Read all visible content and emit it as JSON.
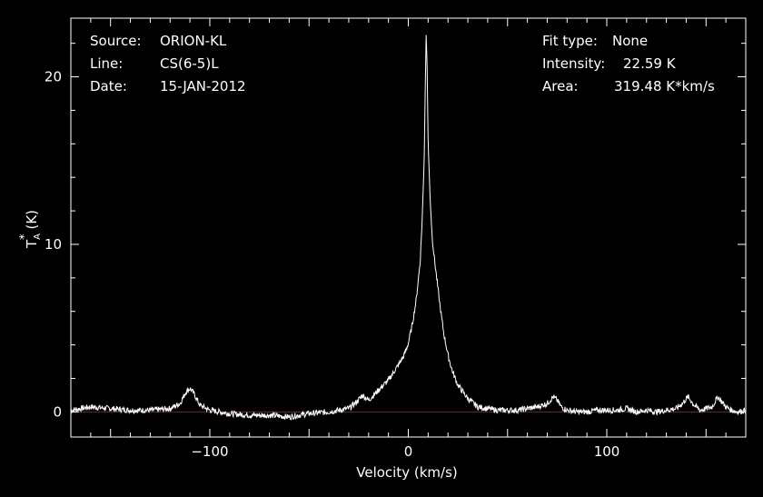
{
  "info_left": [
    {
      "label": "Source:",
      "value": "ORION-KL"
    },
    {
      "label": "Line:",
      "value": "CS(6-5)L"
    },
    {
      "label": "Date:",
      "value": "15-JAN-2012"
    }
  ],
  "info_right": [
    {
      "label": "Fit type:",
      "value": "None"
    },
    {
      "label": "Intensity:",
      "value": "22.59 K"
    },
    {
      "label": "Area:",
      "value": "319.48 K*km/s"
    }
  ],
  "colors": {
    "background": "#000000",
    "axes": "#ffffff",
    "spectrum": "#ffffff",
    "baseline": "#cc0000"
  },
  "chart_data": {
    "type": "line",
    "xlabel": "Velocity (km/s)",
    "ylabel": {
      "main": "T",
      "superscript": "*",
      "subscript": "A",
      "unit": "(K)"
    },
    "xlim": [
      -170,
      170
    ],
    "ylim": [
      -1.5,
      23.5
    ],
    "x_ticks": [
      -100,
      0,
      100
    ],
    "y_ticks": [
      0,
      10,
      20
    ],
    "baseline_y": 0,
    "grid": false,
    "series": [
      {
        "x": [
          -170,
          -165,
          -160,
          -150,
          -140,
          -130,
          -120,
          -115,
          -112,
          -110,
          -108,
          -105,
          -100,
          -90,
          -80,
          -70,
          -60,
          -50,
          -40,
          -30,
          -26,
          -23,
          -20,
          -15,
          -10,
          -5,
          -2,
          0,
          2,
          4,
          6,
          7,
          8,
          8.5,
          9,
          9.5,
          10,
          11,
          12,
          13,
          14,
          16,
          18,
          20,
          22,
          25,
          30,
          35,
          40,
          45,
          50,
          55,
          60,
          65,
          70,
          73,
          75,
          77,
          80,
          85,
          90,
          95,
          100,
          105,
          110,
          115,
          120,
          125,
          130,
          135,
          138,
          141,
          144,
          147,
          150,
          153,
          156,
          158,
          160,
          163,
          166,
          170
        ],
        "y": [
          0.1,
          0.2,
          0.3,
          0.2,
          0.1,
          0.1,
          0.2,
          0.5,
          1.2,
          1.4,
          1.1,
          0.4,
          0.1,
          -0.1,
          -0.2,
          -0.2,
          -0.3,
          -0.1,
          0.0,
          0.2,
          0.6,
          1.0,
          0.7,
          1.3,
          1.9,
          2.8,
          3.4,
          4.1,
          5.2,
          6.7,
          9.0,
          11.5,
          15.0,
          19.0,
          22.59,
          20.5,
          16.0,
          12.8,
          10.5,
          9.3,
          8.3,
          6.3,
          4.6,
          3.4,
          2.5,
          1.6,
          0.8,
          0.3,
          0.2,
          0.1,
          0.1,
          0.1,
          0.2,
          0.3,
          0.5,
          0.9,
          0.7,
          0.3,
          0.1,
          0.0,
          0.0,
          0.1,
          0.1,
          0.1,
          0.2,
          0.0,
          0.1,
          0.0,
          0.1,
          0.2,
          0.5,
          0.9,
          0.4,
          0.1,
          0.2,
          0.3,
          0.9,
          0.6,
          0.3,
          0.1,
          0.0,
          0.1
        ]
      }
    ]
  }
}
